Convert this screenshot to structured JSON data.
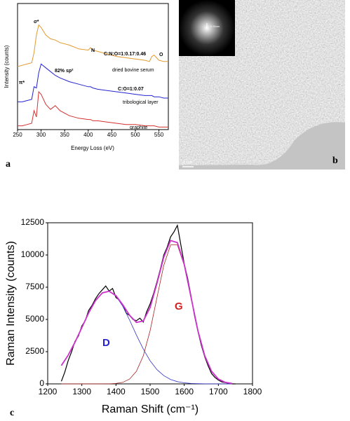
{
  "chart_data": [
    {
      "type": "line",
      "label": "a",
      "xlabel": "Energy Loss (eV)",
      "ylabel": "Intensity (counts)",
      "xlim": [
        250,
        570
      ],
      "xticks": [
        250,
        300,
        350,
        400,
        450,
        500,
        550
      ],
      "ylim": [
        0,
        10
      ],
      "x": [
        250,
        260,
        270,
        280,
        285,
        290,
        295,
        300,
        310,
        320,
        330,
        340,
        360,
        380,
        400,
        405,
        410,
        420,
        440,
        460,
        480,
        500,
        520,
        530,
        535,
        540,
        550,
        560,
        570
      ],
      "series": [
        {
          "name": "dried bovine serum",
          "color": "#e39a2e",
          "values": [
            5.0,
            5.1,
            5.2,
            5.3,
            6.1,
            7.5,
            8.3,
            8.1,
            7.5,
            7.2,
            7.1,
            6.9,
            6.7,
            6.4,
            6.3,
            6.5,
            6.3,
            6.2,
            6.0,
            5.8,
            5.7,
            5.6,
            5.5,
            5.4,
            5.8,
            5.9,
            5.5,
            5.4,
            5.4
          ]
        },
        {
          "name": "tribological layer",
          "color": "#2424d0",
          "values": [
            2.2,
            2.2,
            2.3,
            2.4,
            3.4,
            3.3,
            4.5,
            5.2,
            4.9,
            4.6,
            4.3,
            4.1,
            3.8,
            3.6,
            3.4,
            3.4,
            3.3,
            3.2,
            3.1,
            3.0,
            2.9,
            2.8,
            2.7,
            2.7,
            2.7,
            2.6,
            2.6,
            2.5,
            2.5
          ]
        },
        {
          "name": "graphite",
          "color": "#d43030",
          "values": [
            0.3,
            0.3,
            0.4,
            0.5,
            1.5,
            1.0,
            3.0,
            2.8,
            2.0,
            1.6,
            1.9,
            1.5,
            1.1,
            0.9,
            0.8,
            0.8,
            0.7,
            0.7,
            0.6,
            0.5,
            0.4,
            0.4,
            0.3,
            0.3,
            0.3,
            0.3,
            0.2,
            0.2,
            0.2
          ]
        }
      ],
      "annotations": [
        {
          "text": "σ*",
          "color": "#000"
        },
        {
          "text": "π*",
          "color": "#000"
        },
        {
          "text": "N",
          "color": "#000"
        },
        {
          "text": "C:N:O=1:0.17:0.46",
          "color": "#000"
        },
        {
          "text": "O",
          "color": "#000"
        },
        {
          "text": "82% sp²",
          "color": "#000"
        },
        {
          "text": "C:O=1:0.07",
          "color": "#000"
        }
      ]
    },
    {
      "type": "line",
      "label": "c",
      "xlabel": "Raman Shift (cm⁻¹)",
      "ylabel": "Raman Intensity (counts)",
      "xlim": [
        1200,
        1800
      ],
      "xticks": [
        1200,
        1300,
        1400,
        1500,
        1600,
        1700,
        1800
      ],
      "ylim": [
        0,
        12500
      ],
      "yticks": [
        0,
        2500,
        5000,
        7500,
        10000,
        12500
      ],
      "series": [
        {
          "color": "#000000",
          "x": [
            1240,
            1250,
            1260,
            1270,
            1280,
            1290,
            1300,
            1310,
            1320,
            1330,
            1340,
            1350,
            1360,
            1370,
            1380,
            1390,
            1400,
            1410,
            1420,
            1430,
            1440,
            1450,
            1460,
            1470,
            1480,
            1490,
            1500,
            1510,
            1520,
            1530,
            1540,
            1550,
            1560,
            1570,
            1580,
            1590,
            1600,
            1610,
            1620,
            1630,
            1640,
            1650,
            1660,
            1670,
            1680,
            1690,
            1700,
            1710,
            1720,
            1730,
            1740,
            1750
          ],
          "values": [
            200,
            900,
            1800,
            2500,
            3300,
            3700,
            4500,
            4900,
            5700,
            6100,
            6600,
            7000,
            7300,
            7600,
            7200,
            7400,
            6700,
            6500,
            6100,
            5500,
            5300,
            5000,
            4900,
            5100,
            4800,
            5600,
            6200,
            7000,
            7900,
            8900,
            10000,
            10600,
            11400,
            11800,
            12300,
            10800,
            9300,
            8200,
            6800,
            5300,
            4100,
            3000,
            2100,
            1400,
            800,
            500,
            300,
            150,
            100,
            50,
            0,
            0
          ]
        },
        {
          "color": "#3333cc",
          "x": [
            1240,
            1260,
            1280,
            1300,
            1320,
            1340,
            1360,
            1380,
            1400,
            1420,
            1440,
            1460,
            1480,
            1500,
            1520,
            1540,
            1560,
            1580,
            1600,
            1620,
            1640,
            1660,
            1680,
            1700,
            1720,
            1740
          ],
          "values": [
            1425,
            2223,
            3228,
            4367,
            5503,
            6457,
            7057,
            7184,
            6811,
            6015,
            4944,
            3786,
            2703,
            1796,
            1111,
            640,
            344,
            172,
            80,
            35,
            14,
            5,
            2,
            1,
            0,
            0
          ]
        },
        {
          "color": "#aa2222",
          "x": [
            1240,
            1260,
            1280,
            1300,
            1320,
            1340,
            1360,
            1380,
            1400,
            1420,
            1440,
            1460,
            1480,
            1500,
            1520,
            1540,
            1560,
            1580,
            1600,
            1620,
            1640,
            1660,
            1680,
            1700,
            1720,
            1740
          ],
          "values": [
            0,
            0,
            0,
            0,
            0,
            0,
            2,
            8,
            34,
            122,
            374,
            978,
            2180,
            4127,
            6672,
            9188,
            10782,
            10782,
            9188,
            6672,
            4127,
            2180,
            978,
            374,
            122,
            34
          ]
        },
        {
          "color": "#cc33cc",
          "x": [
            1240,
            1260,
            1280,
            1300,
            1320,
            1340,
            1360,
            1380,
            1400,
            1420,
            1440,
            1460,
            1480,
            1500,
            1520,
            1540,
            1560,
            1580,
            1600,
            1620,
            1640,
            1660,
            1680,
            1700,
            1720,
            1740
          ],
          "values": [
            1425,
            2223,
            3228,
            4367,
            5503,
            6457,
            7059,
            7192,
            6845,
            6137,
            5318,
            4764,
            4883,
            5923,
            7783,
            9828,
            11126,
            10954,
            9268,
            6707,
            4141,
            2185,
            979,
            374,
            122,
            34
          ]
        }
      ],
      "annotations": [
        {
          "text": "D",
          "color": "#2424c8"
        },
        {
          "text": "G",
          "color": "#d42020"
        }
      ]
    }
  ],
  "image": {
    "label": "b",
    "scale_bar": "2 nm",
    "inset_label": "0.34nm"
  }
}
